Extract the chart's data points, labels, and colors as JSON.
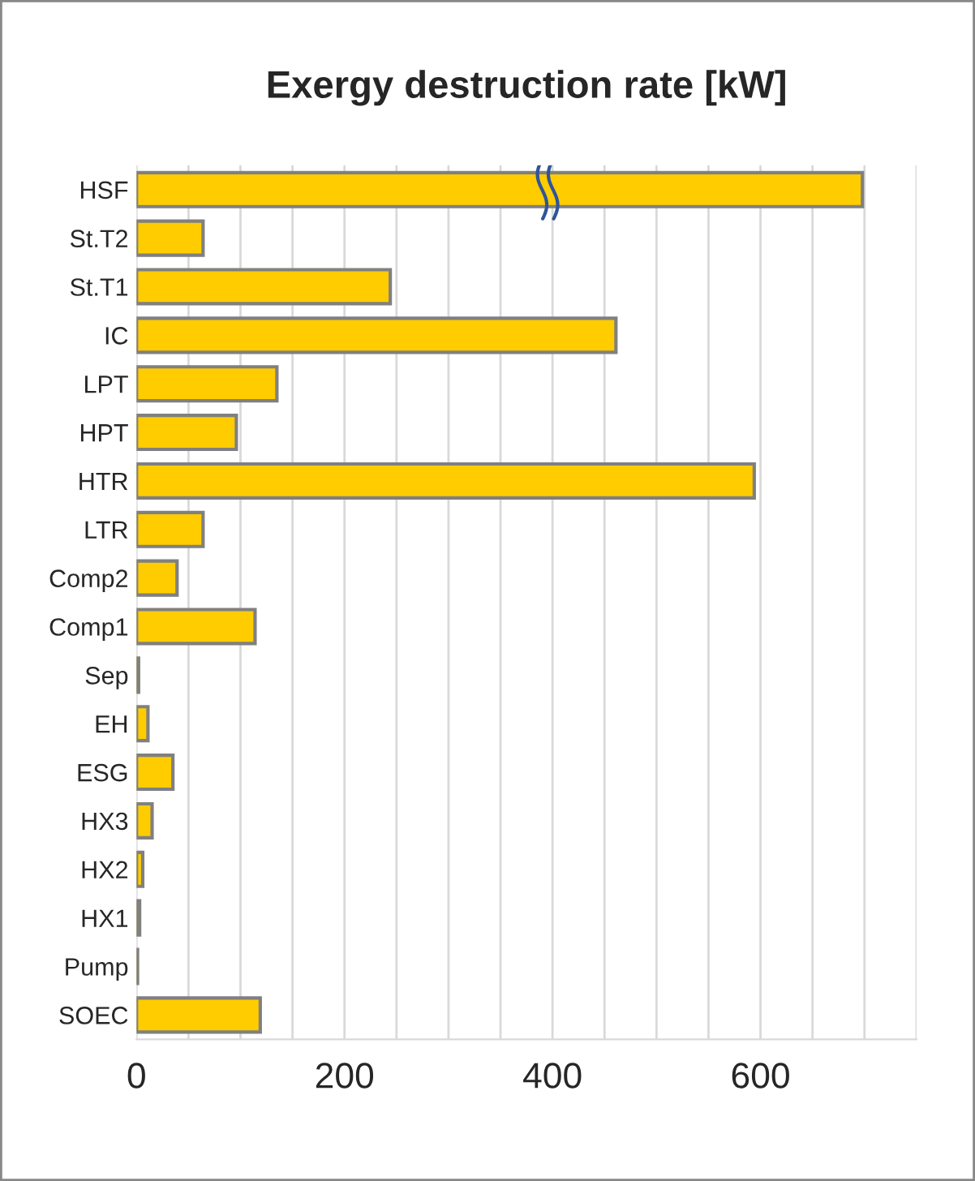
{
  "chart_data": {
    "type": "bar",
    "orientation": "horizontal",
    "title": "Exergy destruction rate [kW]",
    "categories": [
      "HSF",
      "St.T2",
      "St.T1",
      "IC",
      "LPT",
      "HPT",
      "HTR",
      "LTR",
      "Comp2",
      "Comp1",
      "Sep",
      "EH",
      "ESG",
      "HX3",
      "HX2",
      "HX1",
      "Pump",
      "SOEC"
    ],
    "values": [
      698,
      64,
      244,
      461,
      135,
      96,
      594,
      64,
      39,
      114,
      2,
      11,
      35,
      15,
      6,
      3,
      1,
      119
    ],
    "color": "#ffcc00",
    "xlim": [
      0,
      750
    ],
    "xticks": [
      0,
      {
        "value": 50,
        "label": null
      },
      {
        "value": 100,
        "label": null
      },
      {
        "value": 150,
        "label": null
      },
      200,
      {
        "value": 250,
        "label": null
      },
      {
        "value": 300,
        "label": null
      },
      {
        "value": 350,
        "label": null
      },
      400,
      {
        "value": 450,
        "label": null
      },
      {
        "value": 500,
        "label": null
      },
      {
        "value": 550,
        "label": null
      },
      600,
      {
        "value": 650,
        "label": null
      },
      {
        "value": 700,
        "label": null
      },
      {
        "value": 750,
        "label": null
      }
    ],
    "grid": "x"
  }
}
